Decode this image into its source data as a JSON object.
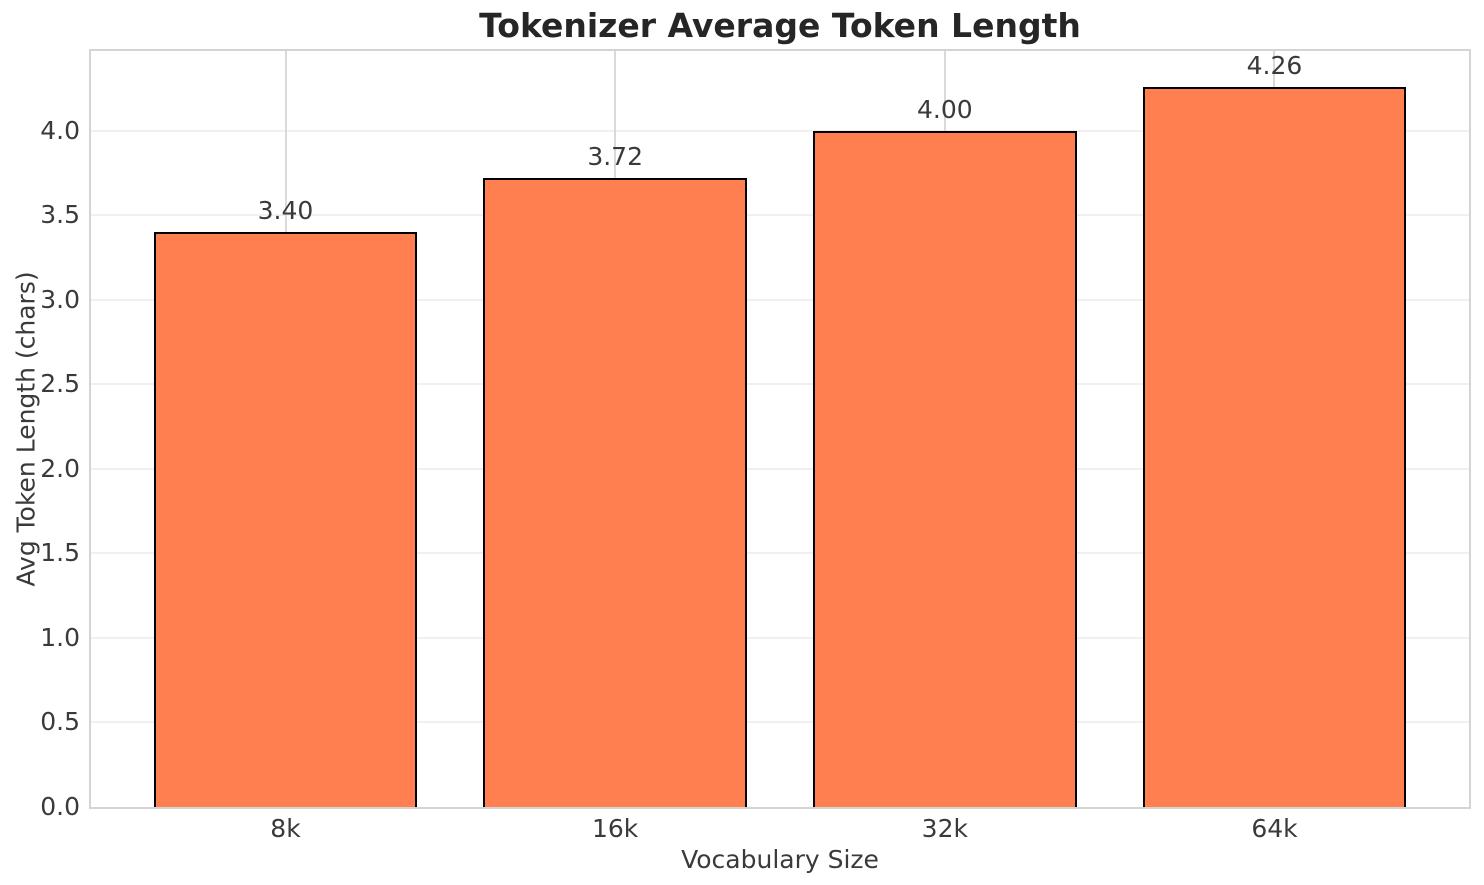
{
  "chart_data": {
    "type": "bar",
    "title": "Tokenizer Average Token Length",
    "xlabel": "Vocabulary Size",
    "ylabel": "Avg Token Length (chars)",
    "categories": [
      "8k",
      "16k",
      "32k",
      "64k"
    ],
    "values": [
      3.4,
      3.72,
      4.0,
      4.26
    ],
    "value_labels": [
      "3.40",
      "3.72",
      "4.00",
      "4.26"
    ],
    "yticks": [
      0.0,
      0.5,
      1.0,
      1.5,
      2.0,
      2.5,
      3.0,
      3.5,
      4.0
    ],
    "ytick_labels": [
      "0.0",
      "0.5",
      "1.0",
      "1.5",
      "2.0",
      "2.5",
      "3.0",
      "3.5",
      "4.0"
    ],
    "ylim": [
      0,
      4.473
    ],
    "xlim": [
      -0.59,
      3.59
    ],
    "bar_width": 0.8,
    "grid": true,
    "legend": false,
    "colors": {
      "bar_fill": "#ff7f50",
      "bar_edge": "#000000",
      "grid_horizontal": "#f0f0f0",
      "grid_vertical": "#d9d9d9",
      "spine": "#d4d4d4",
      "text": "#3a3a3a",
      "title": "#262626"
    }
  }
}
